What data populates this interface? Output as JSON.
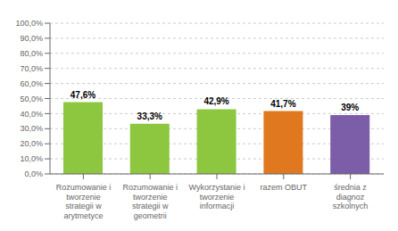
{
  "chart_data": {
    "type": "bar",
    "categories": [
      "Rozumowanie i\ntworzenie\nstrategii w\narytmetyce",
      "Rozumowanie i\ntworzenie\nstrategii w\ngeometrii",
      "Wykorzystanie i\ntworzenie\ninformacji",
      "razem OBUT",
      "średnia z\ndiagnoz\nszkolnych"
    ],
    "values": [
      47.6,
      33.3,
      42.9,
      41.7,
      39.0
    ],
    "value_labels": [
      "47,6%",
      "33,3%",
      "42,9%",
      "41,7%",
      "39%"
    ],
    "colors": [
      "#8DC63F",
      "#8DC63F",
      "#8DC63F",
      "#E07820",
      "#7B5EA7"
    ],
    "ylim": [
      0,
      100
    ],
    "yticks": [
      {
        "value": 0,
        "label": "0,0%"
      },
      {
        "value": 10,
        "label": "10,0%"
      },
      {
        "value": 20,
        "label": "20,0%"
      },
      {
        "value": 30,
        "label": "30,0%"
      },
      {
        "value": 40,
        "label": "40,0%"
      },
      {
        "value": 50,
        "label": "50,0%"
      },
      {
        "value": 60,
        "label": "60,0%"
      },
      {
        "value": 70,
        "label": "70,0%"
      },
      {
        "value": 80,
        "label": "80,0%"
      },
      {
        "value": 90,
        "label": "90,0%"
      },
      {
        "value": 100,
        "label": "100,0%"
      }
    ],
    "grid": true
  }
}
